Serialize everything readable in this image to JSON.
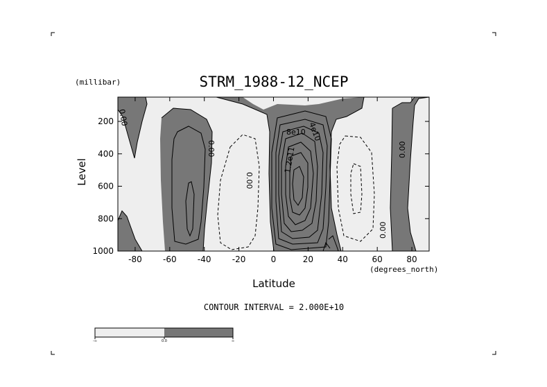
{
  "chart_data": {
    "type": "contour",
    "title": "STRM_1988-12_NCEP",
    "xlabel": "Latitude",
    "ylabel": "Level",
    "x_units": "(degrees_north)",
    "y_units": "(millibar)",
    "xlim": [
      -90,
      90
    ],
    "ylim": [
      1000,
      50
    ],
    "y_inverted": true,
    "x_ticks": [
      -80,
      -60,
      -40,
      -20,
      0,
      20,
      40,
      60,
      80
    ],
    "y_ticks": [
      200,
      400,
      600,
      800,
      1000
    ],
    "contour_interval_text": "CONTOUR INTERVAL = 2.000E+10",
    "contour_labels": [
      "0.00",
      "0.00",
      "0.00",
      "0.00",
      "0.00",
      "8e10",
      "4e10",
      "1.2e11"
    ],
    "colorbar": {
      "labels": [
        "-∞",
        "0.0",
        "∞"
      ],
      "colors": [
        "#eeeeee",
        "#777777"
      ]
    },
    "colors": {
      "positive": "#777777",
      "negative": "#eeeeee"
    }
  }
}
